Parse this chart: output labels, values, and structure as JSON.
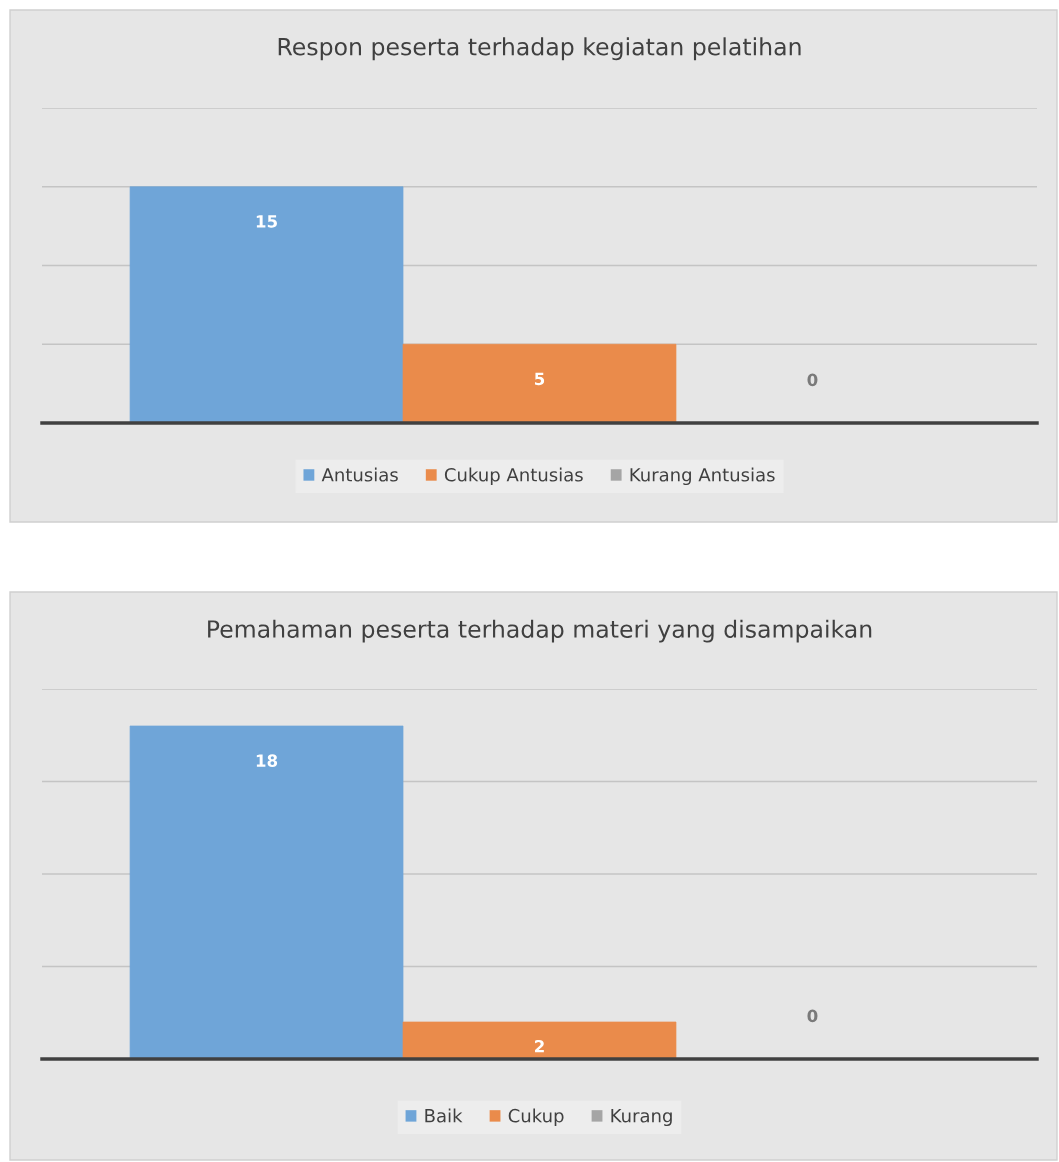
{
  "chart_data": [
    {
      "type": "bar",
      "title": "Respon peserta terhadap kegiatan pelatihan",
      "categories": [
        null
      ],
      "series": [
        {
          "name": "Antusias",
          "color": "#6fa5d8",
          "values": [
            15
          ]
        },
        {
          "name": "Cukup Antusias",
          "color": "#ea8b4b",
          "values": [
            5
          ]
        },
        {
          "name": "Kurang Antusias",
          "color": "#a5a5a5",
          "values": [
            0
          ]
        }
      ],
      "ylim": [
        0,
        20
      ],
      "yticks": [
        {
          "value": 0,
          "label": null
        },
        {
          "value": 5,
          "label": null
        },
        {
          "value": 10,
          "label": null
        },
        {
          "value": 15,
          "label": null
        },
        {
          "value": 20,
          "label": null
        }
      ],
      "grid": "y",
      "legend": "bottom",
      "data_labels": true,
      "tick_labels": false
    },
    {
      "type": "bar",
      "title": "Pemahaman peserta terhadap materi yang disampaikan",
      "categories": [
        null
      ],
      "series": [
        {
          "name": "Baik",
          "color": "#6fa5d8",
          "values": [
            18
          ]
        },
        {
          "name": "Cukup",
          "color": "#ea8b4b",
          "values": [
            2
          ]
        },
        {
          "name": "Kurang",
          "color": "#a5a5a5",
          "values": [
            0
          ]
        }
      ],
      "ylim": [
        0,
        20
      ],
      "yticks": [
        {
          "value": 0,
          "label": null
        },
        {
          "value": 5,
          "label": null
        },
        {
          "value": 10,
          "label": null
        },
        {
          "value": 15,
          "label": null
        },
        {
          "value": 20,
          "label": null
        }
      ],
      "grid": "y",
      "legend": "bottom",
      "data_labels": true,
      "tick_labels": false
    }
  ]
}
